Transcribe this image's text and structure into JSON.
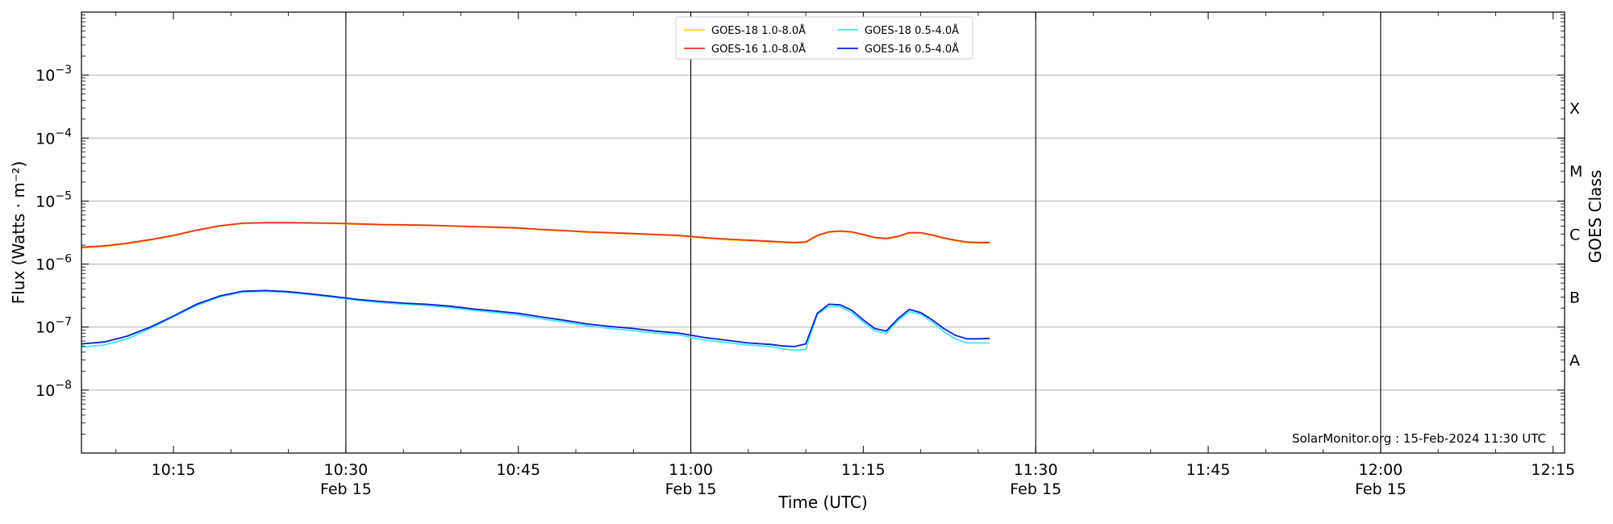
{
  "chart_data": {
    "type": "line",
    "xlabel": "Time (UTC)",
    "ylabel": "Flux (Watts · m⁻²)",
    "right_axis_label": "GOES Class",
    "x_range_minutes": [
      "10:07",
      "12:16"
    ],
    "ylim": [
      1e-09,
      0.01
    ],
    "y_scale": "log",
    "grid": "horizontal at decades",
    "x_ticks": [
      {
        "time": "10:15",
        "sub": ""
      },
      {
        "time": "10:30",
        "sub": "Feb 15"
      },
      {
        "time": "10:45",
        "sub": ""
      },
      {
        "time": "11:00",
        "sub": "Feb 15"
      },
      {
        "time": "11:15",
        "sub": ""
      },
      {
        "time": "11:30",
        "sub": "Feb 15"
      },
      {
        "time": "11:45",
        "sub": ""
      },
      {
        "time": "12:00",
        "sub": "Feb 15"
      },
      {
        "time": "12:15",
        "sub": ""
      }
    ],
    "vertical_lines": [
      "10:30",
      "11:00",
      "11:30",
      "12:00"
    ],
    "y_ticks": [
      {
        "label": "10",
        "exp": "−8",
        "value": 1e-08
      },
      {
        "label": "10",
        "exp": "−7",
        "value": 1e-07
      },
      {
        "label": "10",
        "exp": "−6",
        "value": 1e-06
      },
      {
        "label": "10",
        "exp": "−5",
        "value": 1e-05
      },
      {
        "label": "10",
        "exp": "−4",
        "value": 0.0001
      },
      {
        "label": "10",
        "exp": "−3",
        "value": 0.001
      }
    ],
    "goes_classes": [
      {
        "label": "A",
        "value": 3e-08
      },
      {
        "label": "B",
        "value": 3e-07
      },
      {
        "label": "C",
        "value": 3e-06
      },
      {
        "label": "M",
        "value": 3e-05
      },
      {
        "label": "X",
        "value": 0.0003
      }
    ],
    "legend_position": "top-center",
    "annotation": "SolarMonitor.org : 15-Feb-2024 11:30 UTC",
    "x_times": [
      "10:07",
      "10:09",
      "10:11",
      "10:13",
      "10:15",
      "10:17",
      "10:19",
      "10:21",
      "10:23",
      "10:25",
      "10:27",
      "10:29",
      "10:31",
      "10:33",
      "10:35",
      "10:37",
      "10:39",
      "10:41",
      "10:43",
      "10:45",
      "10:47",
      "10:49",
      "10:51",
      "10:53",
      "10:55",
      "10:57",
      "10:59",
      "11:01",
      "11:03",
      "11:05",
      "11:07",
      "11:08",
      "11:09",
      "11:10",
      "11:11",
      "11:12",
      "11:13",
      "11:14",
      "11:15",
      "11:16",
      "11:17",
      "11:18",
      "11:19",
      "11:20",
      "11:21",
      "11:22",
      "11:23",
      "11:24",
      "11:25",
      "11:26"
    ],
    "series": [
      {
        "name": "GOES-18 1.0-8.0Å",
        "color": "#ffd700",
        "values": [
          1.8e-06,
          1.9e-06,
          2.1e-06,
          2.4e-06,
          2.8e-06,
          3.4e-06,
          4e-06,
          4.4e-06,
          4.5e-06,
          4.5e-06,
          4.45e-06,
          4.4e-06,
          4.3e-06,
          4.2e-06,
          4.15e-06,
          4.1e-06,
          4e-06,
          3.9e-06,
          3.8e-06,
          3.7e-06,
          3.5e-06,
          3.35e-06,
          3.2e-06,
          3.1e-06,
          3e-06,
          2.9e-06,
          2.8e-06,
          2.6e-06,
          2.45e-06,
          2.35e-06,
          2.25e-06,
          2.2e-06,
          2.15e-06,
          2.2e-06,
          2.8e-06,
          3.2e-06,
          3.3e-06,
          3.2e-06,
          2.9e-06,
          2.6e-06,
          2.5e-06,
          2.7e-06,
          3.1e-06,
          3.1e-06,
          2.85e-06,
          2.55e-06,
          2.35e-06,
          2.2e-06,
          2.15e-06,
          2.15e-06
        ]
      },
      {
        "name": "GOES-16 1.0-8.0Å",
        "color": "#e8321e",
        "values": [
          1.85e-06,
          1.95e-06,
          2.15e-06,
          2.45e-06,
          2.85e-06,
          3.45e-06,
          4.05e-06,
          4.45e-06,
          4.55e-06,
          4.55e-06,
          4.5e-06,
          4.45e-06,
          4.35e-06,
          4.25e-06,
          4.2e-06,
          4.15e-06,
          4.05e-06,
          3.95e-06,
          3.85e-06,
          3.75e-06,
          3.55e-06,
          3.4e-06,
          3.25e-06,
          3.15e-06,
          3.05e-06,
          2.95e-06,
          2.85e-06,
          2.65e-06,
          2.5e-06,
          2.4e-06,
          2.3e-06,
          2.25e-06,
          2.2e-06,
          2.25e-06,
          2.85e-06,
          3.25e-06,
          3.35e-06,
          3.25e-06,
          2.95e-06,
          2.65e-06,
          2.55e-06,
          2.75e-06,
          3.15e-06,
          3.15e-06,
          2.9e-06,
          2.6e-06,
          2.4e-06,
          2.25e-06,
          2.2e-06,
          2.2e-06
        ]
      },
      {
        "name": "GOES-18 0.5-4.0Å",
        "color": "#3fe9f2",
        "values": [
          4.8e-08,
          5.2e-08,
          6.5e-08,
          9.5e-08,
          1.45e-07,
          2.2e-07,
          3e-07,
          3.6e-07,
          3.7e-07,
          3.55e-07,
          3.25e-07,
          2.95e-07,
          2.65e-07,
          2.45e-07,
          2.3e-07,
          2.2e-07,
          2.05e-07,
          1.85e-07,
          1.7e-07,
          1.55e-07,
          1.35e-07,
          1.2e-07,
          1.05e-07,
          9.5e-08,
          8.8e-08,
          8e-08,
          7.5e-08,
          6.3e-08,
          5.7e-08,
          5.2e-08,
          4.9e-08,
          4.5e-08,
          4.3e-08,
          4.4e-08,
          1.6e-07,
          2.1e-07,
          2.1e-07,
          1.7e-07,
          1.2e-07,
          8.8e-08,
          7.9e-08,
          1.25e-07,
          1.75e-07,
          1.6e-07,
          1.2e-07,
          8.5e-08,
          6.5e-08,
          5.6e-08,
          5.6e-08,
          5.6e-08
        ]
      },
      {
        "name": "GOES-16 0.5-4.0Å",
        "color": "#0b1fd6",
        "values": [
          5.4e-08,
          5.8e-08,
          7.2e-08,
          1e-07,
          1.5e-07,
          2.3e-07,
          3.1e-07,
          3.7e-07,
          3.8e-07,
          3.65e-07,
          3.35e-07,
          3.05e-07,
          2.75e-07,
          2.55e-07,
          2.4e-07,
          2.3e-07,
          2.15e-07,
          1.95e-07,
          1.8e-07,
          1.65e-07,
          1.45e-07,
          1.28e-07,
          1.12e-07,
          1.02e-07,
          9.5e-08,
          8.6e-08,
          8e-08,
          6.9e-08,
          6.2e-08,
          5.6e-08,
          5.3e-08,
          5e-08,
          4.9e-08,
          5.4e-08,
          1.65e-07,
          2.3e-07,
          2.25e-07,
          1.85e-07,
          1.3e-07,
          9.5e-08,
          8.6e-08,
          1.35e-07,
          1.9e-07,
          1.7e-07,
          1.3e-07,
          9.5e-08,
          7.4e-08,
          6.5e-08,
          6.5e-08,
          6.6e-08
        ]
      }
    ]
  }
}
